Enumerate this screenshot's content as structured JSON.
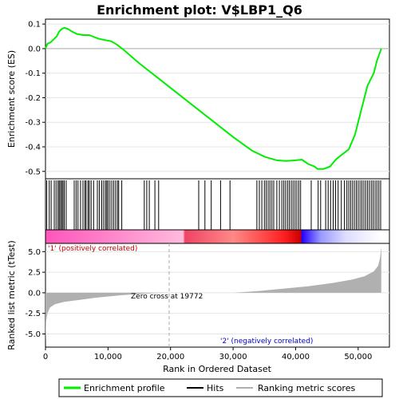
{
  "chart_data": {
    "type": "line",
    "title": "Enrichment plot: V$LBP1_Q6",
    "xlabel": "Rank in Ordered Dataset",
    "es_ylabel": "Enrichment score (ES)",
    "metric_ylabel": "Ranked list metric (tTest)",
    "xlim": [
      0,
      55000
    ],
    "es_ylim": [
      -0.53,
      0.12
    ],
    "metric_ylim": [
      -6.6,
      6.0
    ],
    "x_ticks": [
      0,
      10000,
      20000,
      30000,
      40000,
      50000
    ],
    "x_tick_labels": [
      "0",
      "10,000",
      "20,000",
      "30,000",
      "40,000",
      "50,000"
    ],
    "es_ticks": [
      0.1,
      0.0,
      -0.1,
      -0.2,
      -0.3,
      -0.4,
      -0.5
    ],
    "es_tick_labels": [
      "0.1",
      "0.0",
      "-0.1",
      "-0.2",
      "-0.3",
      "-0.4",
      "-0.5"
    ],
    "metric_ticks": [
      5.0,
      2.5,
      0.0,
      -2.5,
      -5.0
    ],
    "metric_tick_labels": [
      "5.0",
      "2.5",
      "0.0",
      "-2.5",
      "-5.0"
    ],
    "enrichment_profile": {
      "x": [
        0,
        300,
        800,
        1200,
        1800,
        2200,
        2600,
        3000,
        3600,
        4200,
        5000,
        6000,
        7000,
        7500,
        8500,
        9500,
        10500,
        11500,
        12500,
        15000,
        18000,
        21000,
        24000,
        27000,
        30000,
        33000,
        35000,
        37000,
        38500,
        40000,
        41000,
        42000,
        43000,
        43500,
        44500,
        45500,
        46500,
        47500,
        48500,
        49500,
        50500,
        51500,
        52500,
        53000,
        53700
      ],
      "y": [
        0.0,
        0.02,
        0.025,
        0.035,
        0.05,
        0.07,
        0.08,
        0.085,
        0.08,
        0.07,
        0.06,
        0.055,
        0.055,
        0.05,
        0.04,
        0.035,
        0.03,
        0.015,
        -0.005,
        -0.06,
        -0.12,
        -0.18,
        -0.24,
        -0.3,
        -0.36,
        -0.415,
        -0.44,
        -0.455,
        -0.458,
        -0.455,
        -0.452,
        -0.47,
        -0.48,
        -0.49,
        -0.49,
        -0.48,
        -0.45,
        -0.43,
        -0.41,
        -0.35,
        -0.25,
        -0.15,
        -0.1,
        -0.05,
        0.0
      ]
    },
    "hit_positions": [
      200,
      600,
      900,
      1400,
      1700,
      2000,
      2200,
      2400,
      2600,
      2800,
      3000,
      3300,
      4600,
      4900,
      5200,
      5600,
      6000,
      6300,
      6500,
      6800,
      7000,
      7300,
      7700,
      8300,
      8600,
      9000,
      9300,
      9600,
      9800,
      10000,
      10300,
      10600,
      10900,
      11200,
      11500,
      11700,
      12200,
      15800,
      16200,
      16600,
      17500,
      18100,
      24500,
      25500,
      26500,
      28000,
      29500,
      33800,
      34200,
      34600,
      35000,
      35300,
      35600,
      35900,
      36200,
      36500,
      37000,
      37400,
      37800,
      38100,
      38400,
      38700,
      39000,
      39300,
      39600,
      39900,
      40200,
      40500,
      40800,
      42500,
      43600,
      44000,
      44800,
      45200,
      45600,
      46000,
      46400,
      46800,
      47300,
      47800,
      48200,
      48500,
      48800,
      49100,
      49400,
      49700,
      50000,
      50300,
      50600,
      50900,
      51200,
      51500,
      51800,
      52100,
      52400,
      52700,
      53000,
      53300,
      53600
    ],
    "heatmap_stops": [
      {
        "x": 0,
        "color": "#ff55bb"
      },
      {
        "x": 22000,
        "color": "#ffbbdd"
      },
      {
        "x": 22300,
        "color": "#ee4466"
      },
      {
        "x": 30000,
        "color": "#ff8888"
      },
      {
        "x": 38000,
        "color": "#ff2222"
      },
      {
        "x": 40800,
        "color": "#cc0000"
      },
      {
        "x": 41000,
        "color": "#2200ff"
      },
      {
        "x": 44000,
        "color": "#9999ff"
      },
      {
        "x": 48000,
        "color": "#ddddff"
      },
      {
        "x": 53700,
        "color": "#ffffff"
      }
    ],
    "metric_profile": {
      "x": [
        0,
        100,
        300,
        700,
        1500,
        3000,
        5000,
        8000,
        12000,
        16000,
        19772,
        24000,
        30000,
        34000,
        38000,
        42000,
        46000,
        49000,
        51000,
        52500,
        53200,
        53500,
        53700
      ],
      "y": [
        -6.0,
        -3.5,
        -2.5,
        -1.8,
        -1.4,
        -1.1,
        -0.9,
        -0.6,
        -0.3,
        -0.1,
        0.0,
        0.0,
        0.0,
        0.2,
        0.5,
        0.8,
        1.2,
        1.6,
        2.0,
        2.6,
        3.3,
        4.2,
        5.6
      ]
    },
    "zero_cross_x": 19772,
    "zero_cross_label": "Zero cross at 19772",
    "pos_label": "'1' (positively correlated)",
    "neg_label": "'2' (negatively correlated)",
    "legend": [
      "Enrichment profile",
      "Hits",
      "Ranking metric scores"
    ],
    "colors": {
      "profile": "#00ee00",
      "hits": "#000000",
      "metric_fill": "#b0b0b0",
      "pos_label": "#cc0000",
      "neg_label": "#0000cc"
    }
  }
}
